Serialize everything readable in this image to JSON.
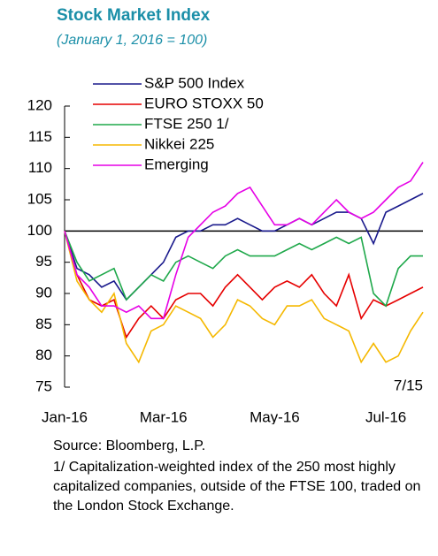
{
  "chart_data": {
    "type": "line",
    "title": "Stock Market Index",
    "subtitle": "(January 1, 2016 = 100)",
    "categories": [
      "Jan-16",
      null,
      null,
      null,
      null,
      null,
      null,
      null,
      "Mar-16",
      null,
      null,
      null,
      null,
      null,
      null,
      null,
      null,
      "May-16",
      null,
      null,
      null,
      null,
      null,
      null,
      null,
      null,
      "Jul-16",
      null,
      null,
      null
    ],
    "series": [
      {
        "name": "S&P 500 Index",
        "color": "#1a1a8c",
        "values": [
          100,
          94,
          93,
          91,
          92,
          89,
          91,
          93,
          95,
          99,
          100,
          100,
          101,
          101,
          102,
          101,
          100,
          100,
          101,
          102,
          101,
          102,
          103,
          103,
          102,
          98,
          103,
          104,
          105,
          106
        ]
      },
      {
        "name": "EURO STOXX 50",
        "color": "#e60000",
        "values": [
          100,
          93,
          89,
          88,
          89,
          83,
          86,
          88,
          86,
          89,
          90,
          90,
          88,
          91,
          93,
          91,
          89,
          91,
          92,
          91,
          93,
          90,
          88,
          93,
          86,
          89,
          88,
          89,
          90,
          91
        ]
      },
      {
        "name": "FTSE 250 1/",
        "color": "#1ea84a",
        "values": [
          100,
          95,
          92,
          93,
          94,
          89,
          91,
          93,
          92,
          95,
          96,
          95,
          94,
          96,
          97,
          96,
          96,
          96,
          97,
          98,
          97,
          98,
          99,
          98,
          99,
          90,
          88,
          94,
          96,
          96
        ]
      },
      {
        "name": "Nikkei 225",
        "color": "#f5b800",
        "values": [
          100,
          92,
          89,
          87,
          90,
          82,
          79,
          84,
          85,
          88,
          87,
          86,
          83,
          85,
          89,
          88,
          86,
          85,
          88,
          88,
          89,
          86,
          85,
          84,
          79,
          82,
          79,
          80,
          84,
          87
        ]
      },
      {
        "name": "Emerging",
        "color": "#e600e6",
        "values": [
          100,
          93,
          91,
          88,
          88,
          87,
          88,
          86,
          86,
          93,
          99,
          101,
          103,
          104,
          106,
          107,
          104,
          101,
          101,
          102,
          101,
          103,
          105,
          103,
          102,
          103,
          105,
          107,
          108,
          111
        ]
      }
    ],
    "ylim": [
      75,
      120
    ],
    "yticks": [
      75,
      80,
      85,
      90,
      95,
      100,
      105,
      110,
      115,
      120
    ],
    "reference_line": 100,
    "annotation": "7/15",
    "legend": "upper left",
    "source": "Source: Bloomberg, L.P.",
    "footnote": "1/ Capitalization-weighted index of the 250 most highly capitalized companies, outside of the FTSE 100, traded on the London Stock Exchange."
  }
}
